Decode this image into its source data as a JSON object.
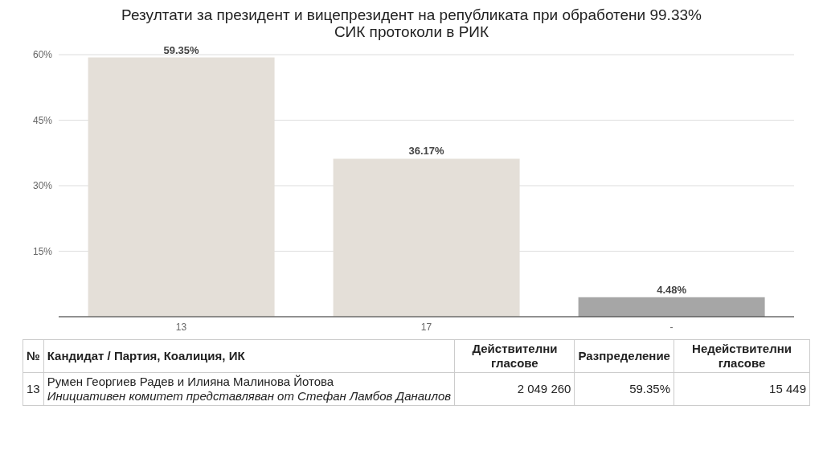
{
  "chart_data": {
    "type": "bar",
    "title": "Резултати за президент и вицепрезидент на републиката при обработени 99.33% СИК протоколи в РИК",
    "categories": [
      "13",
      "17",
      "-"
    ],
    "values": [
      59.35,
      36.17,
      4.48
    ],
    "colors": [
      "#e4dfd8",
      "#e4dfd8",
      "#a6a6a6"
    ],
    "value_labels": [
      "59.35%",
      "36.17%",
      "4.48%"
    ],
    "ylim": [
      0,
      60
    ],
    "yticks": [
      {
        "value": 15,
        "label": "15%"
      },
      {
        "value": 30,
        "label": "30%"
      },
      {
        "value": 45,
        "label": "45%"
      },
      {
        "value": 60,
        "label": "60%"
      }
    ],
    "grid": "y",
    "annotations": [
      "№",
      "Кандидат / Партия, Коалиция, ИК",
      "Действителни гласове",
      "Разпределение",
      "Недействителни гласове",
      "13",
      "Румен Георгиев Радев и Илияна Малинова Йотова",
      "Инициативен комитет представляван от Стефан Ламбов Данаилов",
      "2 049 260",
      "59.35%",
      "15 449"
    ]
  }
}
